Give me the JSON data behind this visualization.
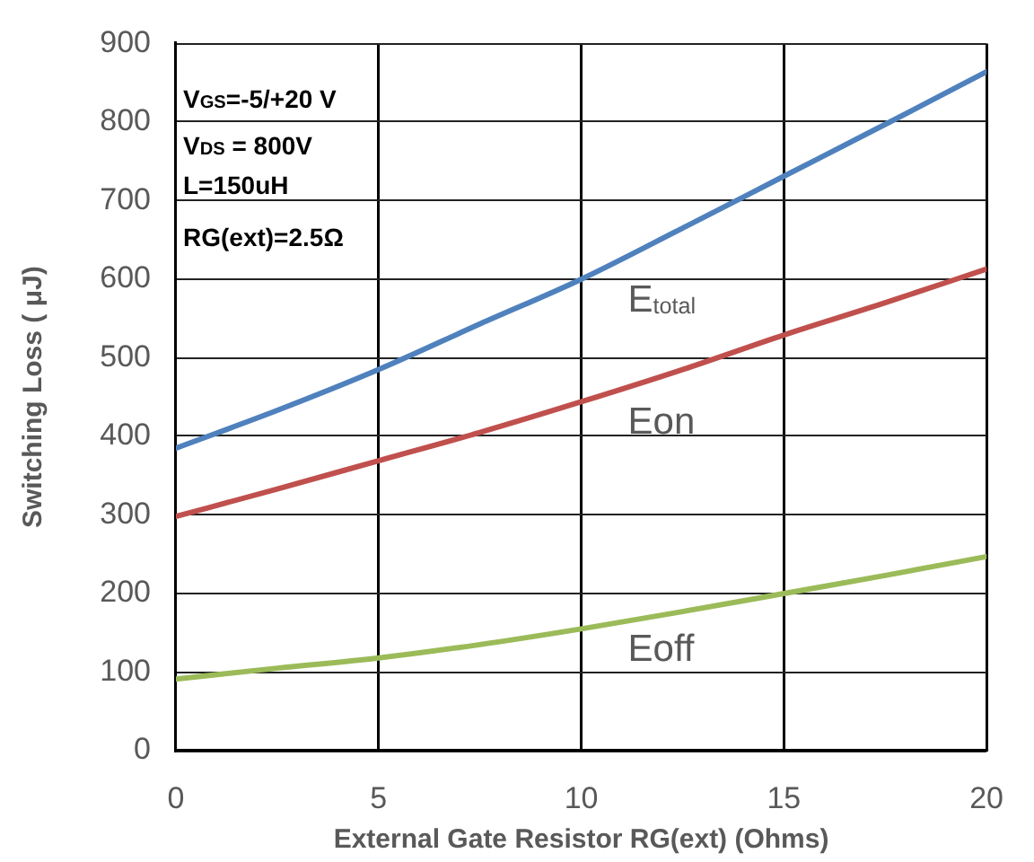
{
  "chart_data": {
    "type": "line",
    "xlabel": "External Gate Resistor RG(ext) (Ohms)",
    "ylabel": "Switching Loss ( μJ)",
    "x": [
      0,
      2.5,
      5,
      7.5,
      10,
      12.5,
      15,
      17.5,
      20
    ],
    "series": [
      {
        "name": "E$_{total}$",
        "color": "#4f81bd",
        "values": [
          385,
          433,
          485,
          543,
          600,
          665,
          731,
          797,
          864
        ]
      },
      {
        "name": "Eon",
        "color": "#c0504d",
        "values": [
          298,
          333,
          369,
          405,
          444,
          485,
          529,
          570,
          613
        ]
      },
      {
        "name": "Eoff",
        "color": "#9bbb59",
        "values": [
          91,
          105,
          118,
          135,
          155,
          177,
          200,
          223,
          247
        ]
      }
    ],
    "xlim": [
      0,
      20
    ],
    "xticks": [
      0,
      5,
      10,
      15,
      20
    ],
    "ylim": [
      0,
      900
    ],
    "yticks": [
      0,
      100,
      200,
      300,
      400,
      500,
      600,
      700,
      800,
      900
    ],
    "annotations": [
      "V$_{GS}$=-5/+20 V",
      "V$_{DS}$ = 800V",
      "L=150uH",
      "RG(ext)=2.5Ω"
    ],
    "grid": true,
    "legend": false,
    "marker": "none",
    "line_style": "solid"
  }
}
